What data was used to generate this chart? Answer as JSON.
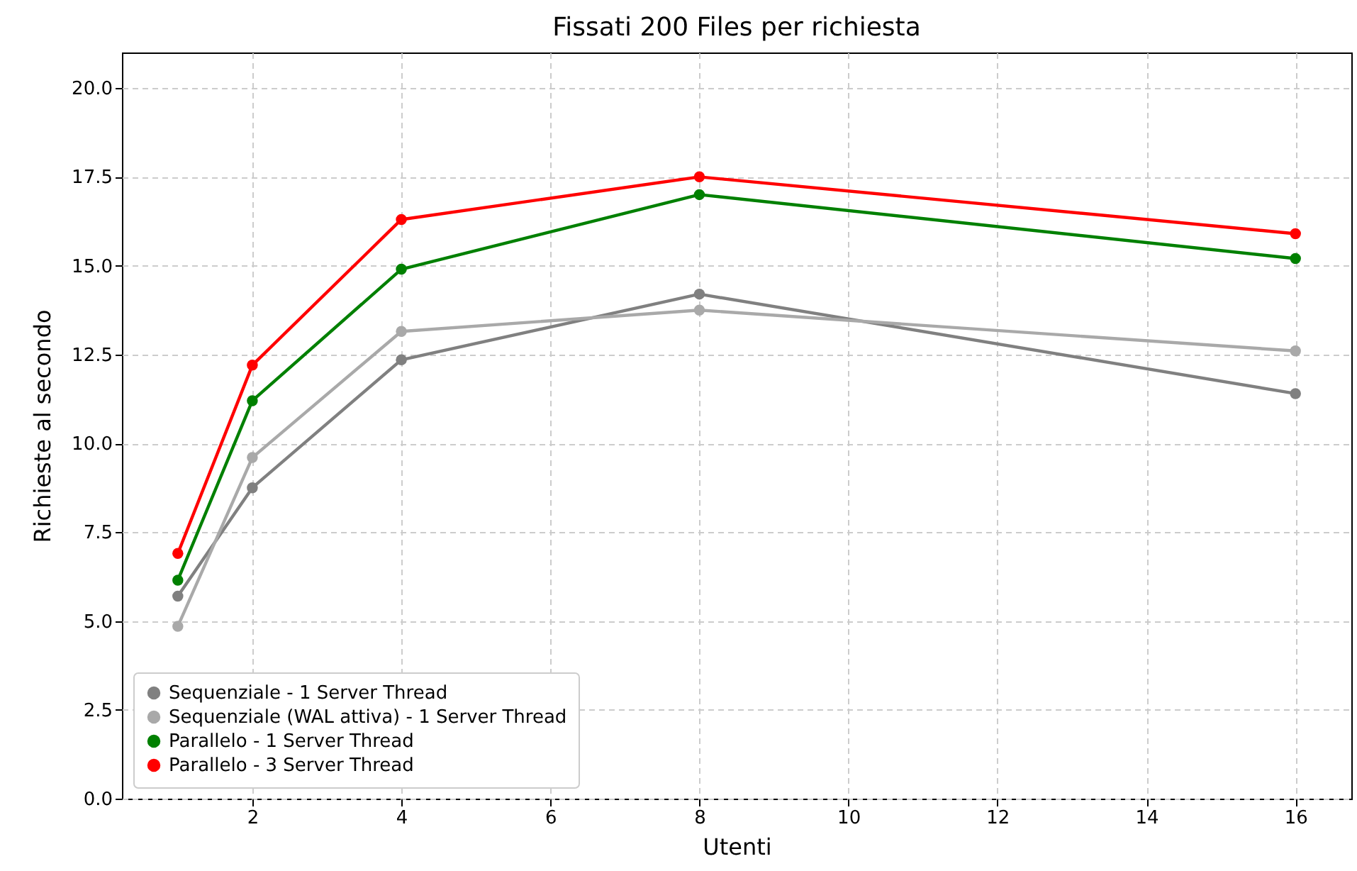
{
  "chart_data": {
    "type": "line",
    "title": "Fissati 200 Files per richiesta",
    "xlabel": "Utenti",
    "ylabel": "Richieste al secondo",
    "x": [
      1,
      2,
      4,
      8,
      16
    ],
    "series": [
      {
        "name": "Sequenziale - 1 Server Thread",
        "color": "#808080",
        "values": [
          5.7,
          8.75,
          12.35,
          14.2,
          11.4
        ]
      },
      {
        "name": "Sequenziale (WAL attiva) - 1 Server Thread",
        "color": "#a9a9a9",
        "values": [
          4.85,
          9.6,
          13.15,
          13.75,
          12.6
        ]
      },
      {
        "name": "Parallelo - 1 Server Thread",
        "color": "#008000",
        "values": [
          6.15,
          11.2,
          14.9,
          17.0,
          15.2
        ]
      },
      {
        "name": "Parallelo - 3 Server Thread",
        "color": "#ff0000",
        "values": [
          6.9,
          12.2,
          16.3,
          17.5,
          15.9
        ]
      }
    ],
    "xlim": [
      0.25,
      16.75
    ],
    "ylim": [
      0,
      21
    ],
    "xticks": [
      2,
      4,
      6,
      8,
      10,
      12,
      14,
      16
    ],
    "yticks": [
      {
        "value": 0,
        "label": "0.0"
      },
      {
        "value": 2.5,
        "label": "2.5"
      },
      {
        "value": 5,
        "label": "5.0"
      },
      {
        "value": 7.5,
        "label": "7.5"
      },
      {
        "value": 10,
        "label": "10.0"
      },
      {
        "value": 12.5,
        "label": "12.5"
      },
      {
        "value": 15,
        "label": "15.0"
      },
      {
        "value": 17.5,
        "label": "17.5"
      },
      {
        "value": 20,
        "label": "20.0"
      }
    ],
    "grid": true,
    "legend": "bottom left",
    "marker": "circle",
    "line_style": "solid"
  }
}
